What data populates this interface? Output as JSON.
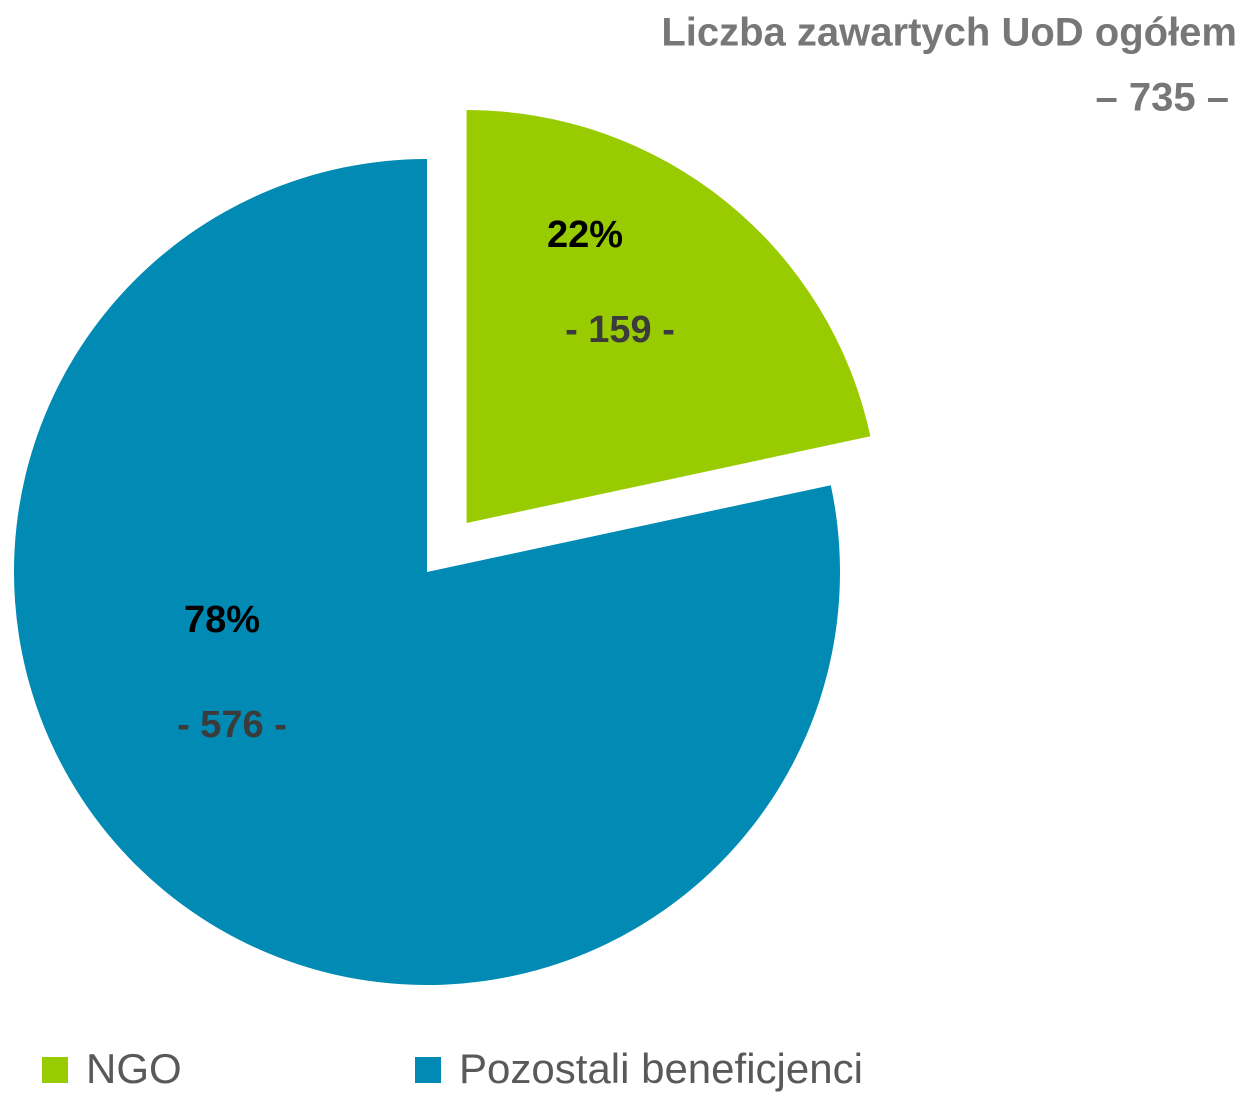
{
  "chart_data": {
    "type": "pie",
    "title": "Liczba zawartych UoD ogółem",
    "subtitle": "– 735 –",
    "categories": [
      "NGO",
      "Pozostali beneficjenci"
    ],
    "values": [
      159,
      576
    ],
    "value_labels": [
      "- 159 -",
      "- 576 -"
    ],
    "percent_labels": [
      "22%",
      "78%"
    ],
    "colors": [
      "#99cc00",
      "#008ab4"
    ],
    "exploded": [
      true,
      false
    ],
    "legend": "bottom"
  }
}
